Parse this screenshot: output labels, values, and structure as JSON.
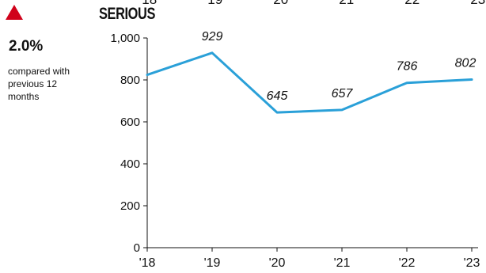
{
  "headline": {
    "change_icon": "triangle-up-icon",
    "change_color": "#d0021b",
    "change_value": "2.0%",
    "change_caption": "compared with previous 12 months"
  },
  "top_partial_labels": [
    "'18",
    "'19",
    "'20",
    "'21",
    "'22",
    "'23"
  ],
  "chart_data": {
    "type": "line",
    "title": "SERIOUS",
    "categories": [
      "'18",
      "'19",
      "'20",
      "'21",
      "'22",
      "'23"
    ],
    "series": [
      {
        "values": [
          824,
          929,
          645,
          657,
          786,
          802
        ],
        "data_labels": [
          "",
          "929",
          "645",
          "657",
          "786",
          "802"
        ],
        "color": "#2aa0d8"
      }
    ],
    "yticks": [
      "0",
      "200",
      "400",
      "600",
      "800",
      "1,000"
    ],
    "ytick_values": [
      0,
      200,
      400,
      600,
      800,
      1000
    ],
    "ylim": [
      0,
      1000
    ],
    "xlabel": "",
    "ylabel": "",
    "grid": false,
    "legend": "none"
  }
}
